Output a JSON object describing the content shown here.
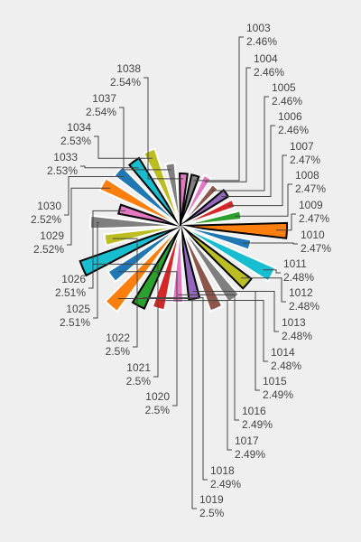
{
  "chart_data": {
    "type": "pie",
    "title": "",
    "labels": [
      "1003",
      "1004",
      "1005",
      "1006",
      "1007",
      "1008",
      "1009",
      "1010",
      "1011",
      "1012",
      "1013",
      "1014",
      "1015",
      "1016",
      "1017",
      "1018",
      "1019",
      "1020",
      "1021",
      "1022",
      "1025",
      "1026",
      "1029",
      "1030",
      "1033",
      "1034",
      "1037",
      "1038"
    ],
    "values": [
      2.46,
      2.46,
      2.46,
      2.46,
      2.47,
      2.47,
      2.47,
      2.47,
      2.48,
      2.48,
      2.48,
      2.48,
      2.49,
      2.49,
      2.49,
      2.49,
      2.5,
      2.5,
      2.5,
      2.5,
      2.51,
      2.51,
      2.52,
      2.52,
      2.53,
      2.53,
      2.54,
      2.54
    ],
    "percent_labels": [
      "2.46%",
      "2.46%",
      "2.46%",
      "2.46%",
      "2.47%",
      "2.47%",
      "2.47%",
      "2.47%",
      "2.48%",
      "2.48%",
      "2.48%",
      "2.48%",
      "2.49%",
      "2.49%",
      "2.49%",
      "2.49%",
      "2.5%",
      "2.5%",
      "2.5%",
      "2.5%",
      "2.51%",
      "2.51%",
      "2.52%",
      "2.52%",
      "2.53%",
      "2.53%",
      "2.54%",
      "2.54%"
    ],
    "colors": [
      "#7f7f7f",
      "#e377c2",
      "#8c564b",
      "#9467bd",
      "#d62728",
      "#2ca02c",
      "#ff7f0e",
      "#1f77b4",
      "#17becf",
      "#bcbd22",
      "#7f7f7f",
      "#8c564b",
      "#9467bd",
      "#e377c2",
      "#d62728",
      "#2ca02c",
      "#ff7f0e",
      "#1f77b4",
      "#17becf",
      "#bcbd22",
      "#7f7f7f",
      "#e377c2",
      "#ff7f0e",
      "#1f77b4",
      "#17becf",
      "#bcbd22",
      "#7f7f7f",
      "#e377c2"
    ],
    "legend": "none",
    "background": "#efefef",
    "label_color": "#444444"
  }
}
